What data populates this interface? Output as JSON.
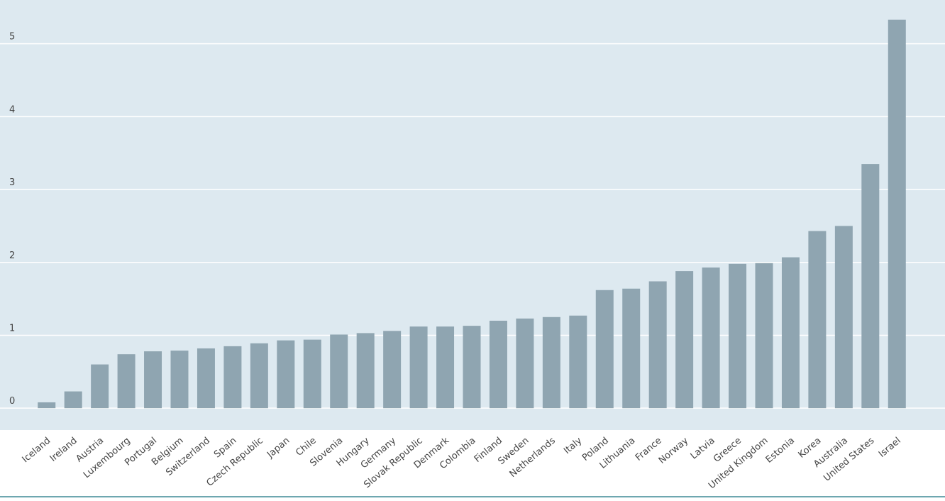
{
  "chart_data": {
    "type": "bar",
    "categories": [
      "Iceland",
      "Ireland",
      "Austria",
      "Luxembourg",
      "Portugal",
      "Belgium",
      "Switzerland",
      "Spain",
      "Czech Republic",
      "Japan",
      "Chile",
      "Slovenia",
      "Hungary",
      "Germany",
      "Slovak Republic",
      "Denmark",
      "Colombia",
      "Finland",
      "Sweden",
      "Netherlands",
      "Italy",
      "Poland",
      "Lithuania",
      "France",
      "Norway",
      "Latvia",
      "Greece",
      "United Kingdom",
      "Estonia",
      "Korea",
      "Australia",
      "United States",
      "Israel"
    ],
    "values": [
      0.08,
      0.23,
      0.6,
      0.74,
      0.78,
      0.79,
      0.82,
      0.85,
      0.89,
      0.93,
      0.94,
      1.01,
      1.03,
      1.06,
      1.12,
      1.12,
      1.13,
      1.2,
      1.23,
      1.25,
      1.27,
      1.62,
      1.64,
      1.74,
      1.88,
      1.93,
      1.98,
      1.99,
      2.07,
      2.43,
      2.5,
      3.35,
      5.33
    ],
    "color": "#8fa5b1",
    "ylim": [
      -0.3,
      5.6
    ],
    "yticks": [
      0,
      1,
      2,
      3,
      4,
      5
    ],
    "grid": true
  }
}
